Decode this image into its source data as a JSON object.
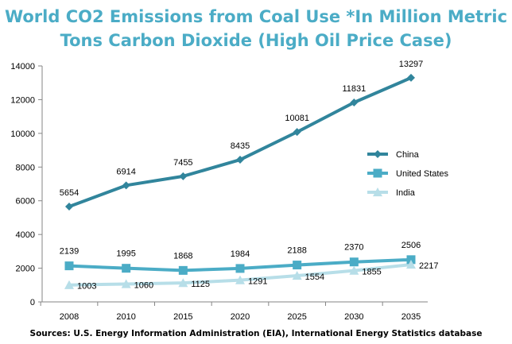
{
  "chart_data": {
    "type": "line",
    "title_line1": "World CO2 Emissions from Coal Use *In Million Metric",
    "title_line2": "Tons Carbon Dioxide (High Oil Price Case)",
    "xlabel": "",
    "ylabel": "",
    "categories": [
      "2008",
      "2010",
      "2015",
      "2020",
      "2025",
      "2030",
      "2035"
    ],
    "ylim": [
      0,
      14000
    ],
    "yticks": [
      "0",
      "2000",
      "4000",
      "6000",
      "8000",
      "10000",
      "12000",
      "14000"
    ],
    "grid": false,
    "legend_position": "right",
    "series": [
      {
        "name": "China",
        "values": [
          5654,
          6914,
          7455,
          8435,
          10081,
          11831,
          13297
        ],
        "labels": [
          "5654",
          "6914",
          "7455",
          "8435",
          "10081",
          "11831",
          "13297"
        ],
        "color": "#31859c",
        "marker": "diamond"
      },
      {
        "name": "United States",
        "values": [
          2139,
          1995,
          1868,
          1984,
          2188,
          2370,
          2506
        ],
        "labels": [
          "2139",
          "1995",
          "1868",
          "1984",
          "2188",
          "2370",
          "2506"
        ],
        "color": "#4bacc6",
        "marker": "square"
      },
      {
        "name": "India",
        "values": [
          1003,
          1060,
          1125,
          1291,
          1554,
          1855,
          2217
        ],
        "labels": [
          "1003",
          "1060",
          "1125",
          "1291",
          "1554",
          "1855",
          "2217"
        ],
        "color": "#b7dee8",
        "marker": "triangle"
      }
    ],
    "source": "Sources: U.S. Energy Information Administration (EIA), International Energy Statistics database"
  }
}
